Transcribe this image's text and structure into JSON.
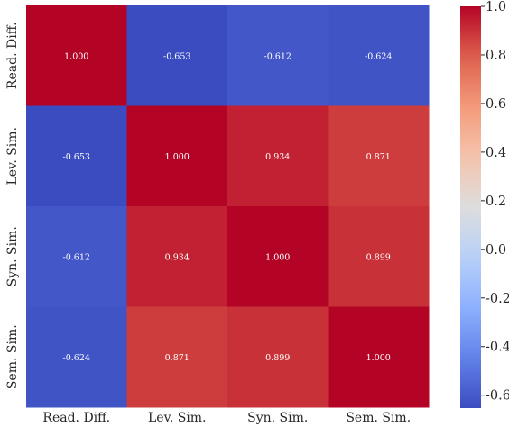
{
  "chart_data": {
    "type": "heatmap",
    "row_labels": [
      "Read. Diff.",
      "Lev. Sim.",
      "Syn. Sim.",
      "Sem. Sim."
    ],
    "col_labels": [
      "Read. Diff.",
      "Lev. Sim.",
      "Syn. Sim.",
      "Sem. Sim."
    ],
    "values": [
      [
        1.0,
        -0.653,
        -0.612,
        -0.624
      ],
      [
        -0.653,
        1.0,
        0.934,
        0.871
      ],
      [
        -0.612,
        0.934,
        1.0,
        0.899
      ],
      [
        -0.624,
        0.871,
        0.899,
        1.0
      ]
    ],
    "value_labels": [
      [
        "1.000",
        "-0.653",
        "-0.612",
        "-0.624"
      ],
      [
        "-0.653",
        "1.000",
        "0.934",
        "0.871"
      ],
      [
        "-0.612",
        "0.934",
        "1.000",
        "0.899"
      ],
      [
        "-0.624",
        "0.871",
        "0.899",
        "1.000"
      ]
    ],
    "colormap": "coolwarm",
    "vmin": -0.653,
    "vmax": 1.0,
    "colorbar_ticks": [
      1.0,
      0.8,
      0.6,
      0.4,
      0.2,
      0.0,
      -0.2,
      -0.4,
      -0.6
    ],
    "colorbar_tick_labels": [
      "1.0",
      "0.8",
      "0.6",
      "0.4",
      "0.2",
      "0.0",
      "-0.2",
      "-0.4",
      "-0.6"
    ],
    "colors": {
      "cool_end": "#3b4cc0",
      "mid": "#dddddd",
      "warm_end": "#b40426",
      "text_light": "#ffffff",
      "text_dark": "#262626"
    }
  }
}
